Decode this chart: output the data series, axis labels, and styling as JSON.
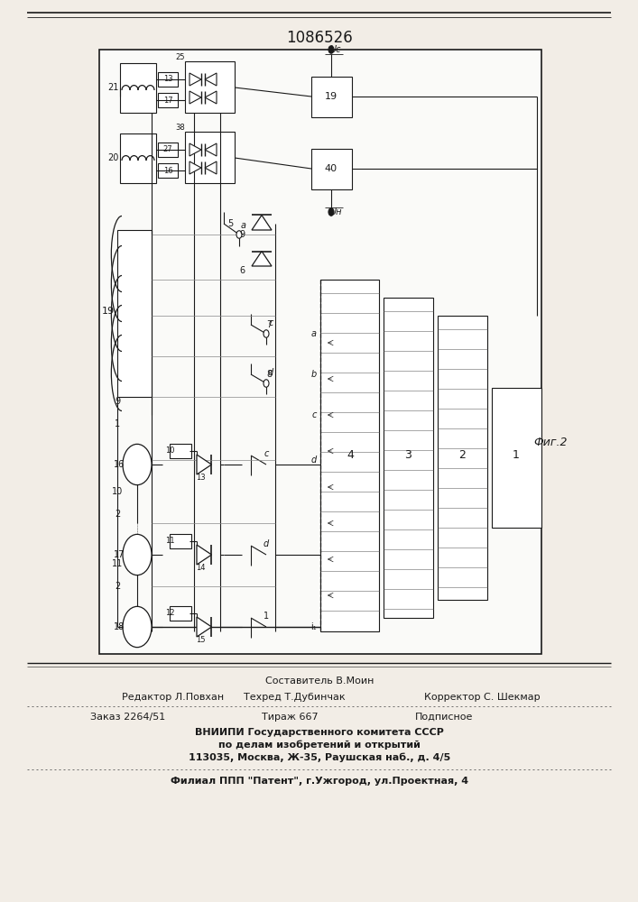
{
  "patent_number": "1086526",
  "fig_label": "Фиг.2",
  "bg_color": "#f2ede6",
  "footer": {
    "editor": "Редактор Л.Повхан",
    "composer": "Составитель В.Моин",
    "techred": "Техред Т.Дубинчак",
    "corrector": "Корректор С. Шекмар",
    "order": "Заказ 2264/51",
    "circulation": "Тираж 667",
    "subscription": "Подписное",
    "org1": "ВНИИПИ Государственного комитета СССР",
    "org2": "по делам изобретений и открытий",
    "org3": "113035, Москва, Ж-35, Раушская наб., д. 4/5",
    "branch": "Филиал ППП \"Патент\", г.Ужгород, ул.Проектная, 4"
  }
}
